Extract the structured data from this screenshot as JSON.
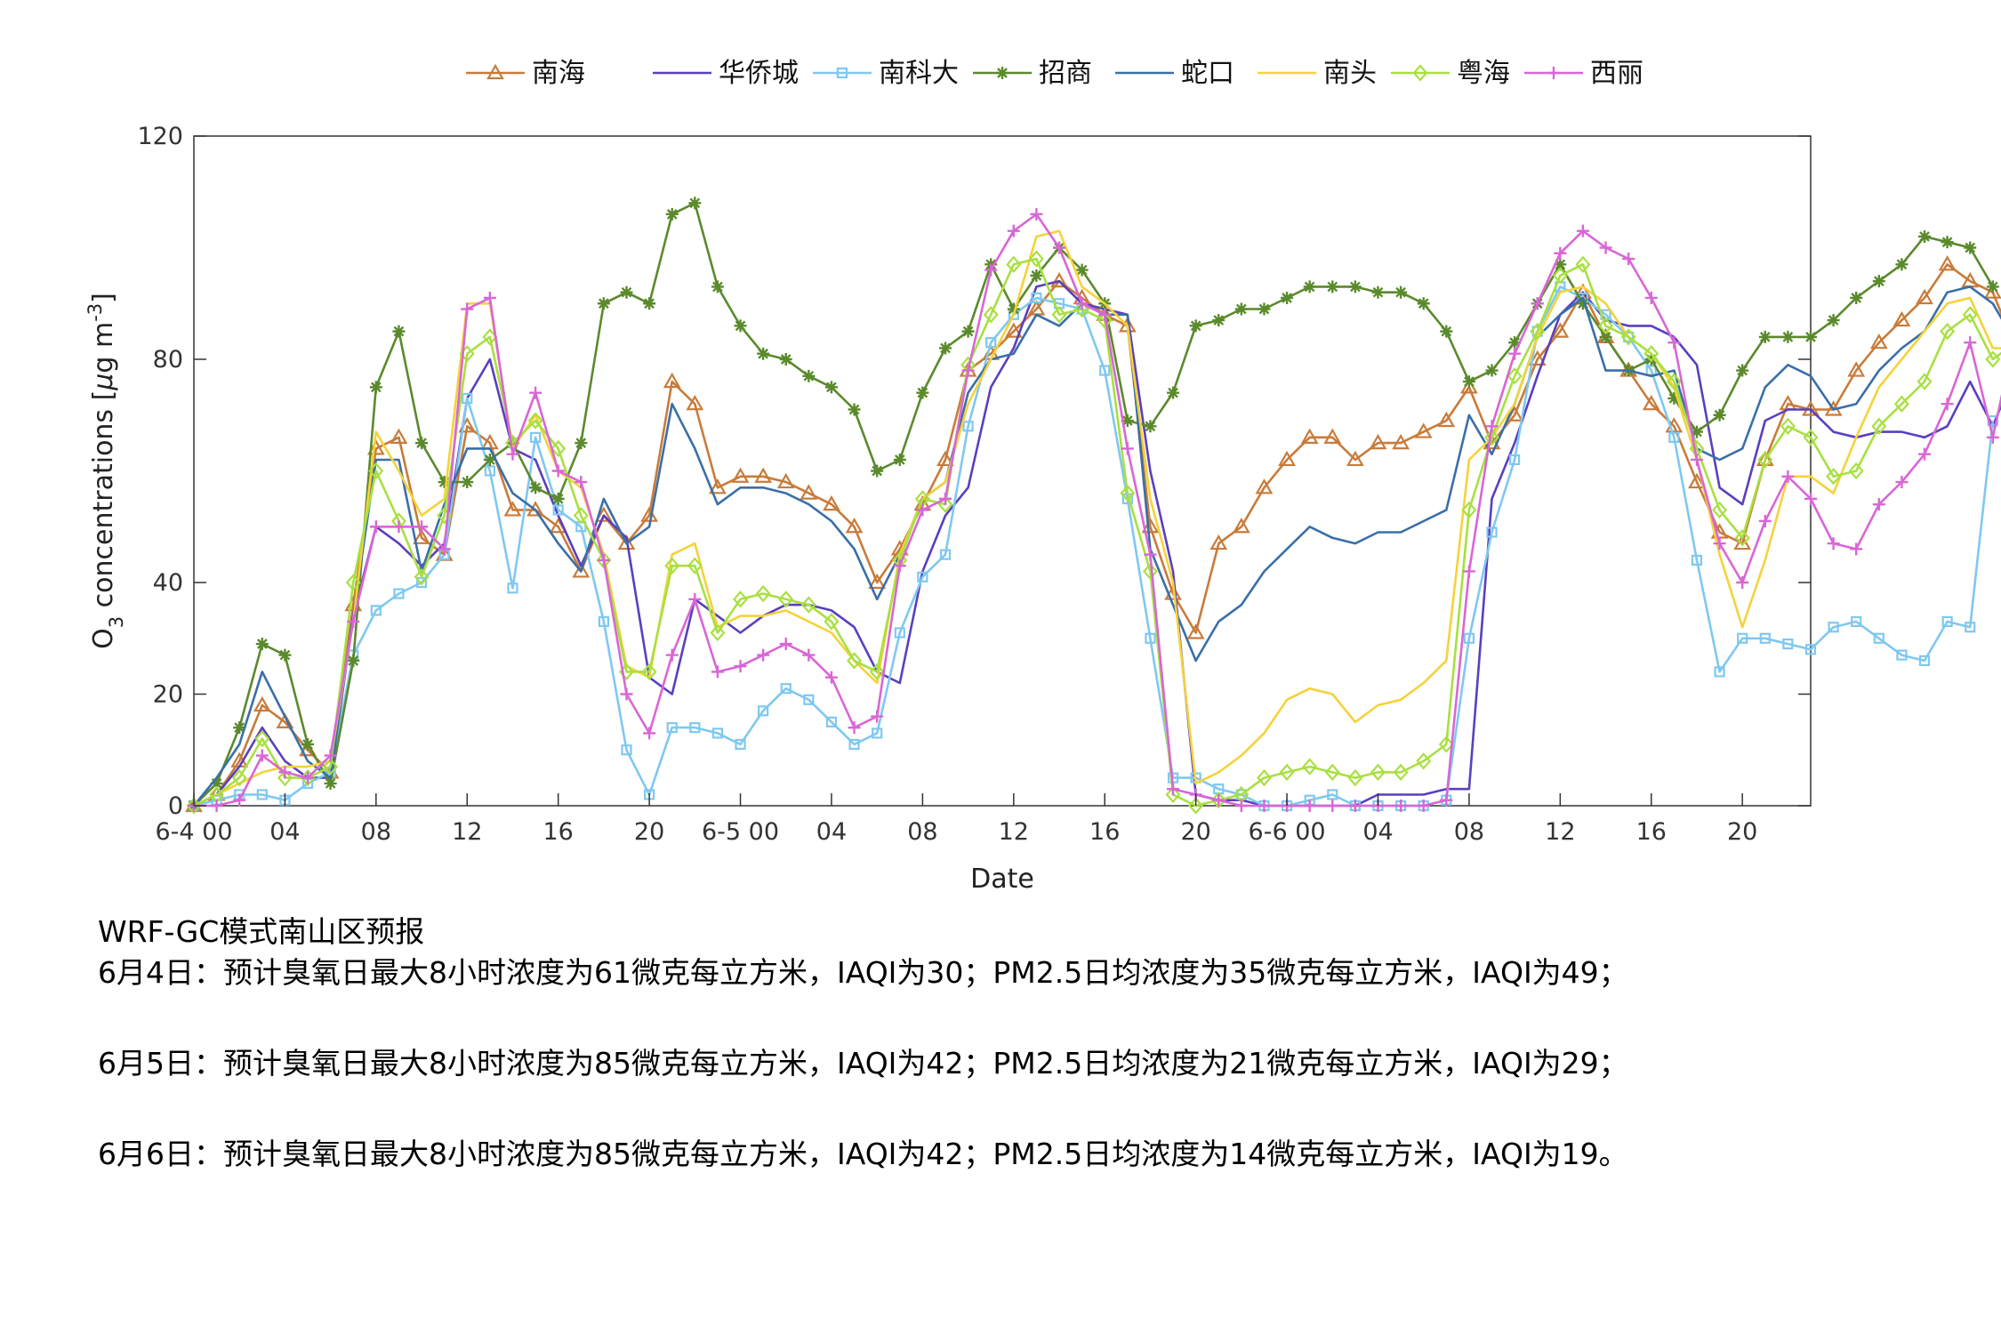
{
  "chart_data": {
    "type": "line",
    "xlabel": "Date",
    "ylabel": "O3 concentrations [μg m-3]",
    "ylabel_parts": {
      "main": "O",
      "sub": "3",
      "rest": " concentrations [",
      "mu": "μ",
      "unit": "g m",
      "sup": "-3",
      "close": "]"
    },
    "ylim": [
      0,
      120
    ],
    "yticks": [
      0,
      20,
      40,
      80,
      120
    ],
    "x_hours_range": [
      0,
      71
    ],
    "xticks": [
      {
        "hour": 0,
        "label": "6-4 00"
      },
      {
        "hour": 4,
        "label": "04"
      },
      {
        "hour": 8,
        "label": "08"
      },
      {
        "hour": 12,
        "label": "12"
      },
      {
        "hour": 16,
        "label": "16"
      },
      {
        "hour": 20,
        "label": "20"
      },
      {
        "hour": 24,
        "label": "6-5 00"
      },
      {
        "hour": 28,
        "label": "04"
      },
      {
        "hour": 32,
        "label": "08"
      },
      {
        "hour": 36,
        "label": "12"
      },
      {
        "hour": 40,
        "label": "16"
      },
      {
        "hour": 44,
        "label": "20"
      },
      {
        "hour": 48,
        "label": "6-6 00"
      },
      {
        "hour": 52,
        "label": "04"
      },
      {
        "hour": 56,
        "label": "08"
      },
      {
        "hour": 60,
        "label": "12"
      },
      {
        "hour": 64,
        "label": "16"
      },
      {
        "hour": 68,
        "label": "20"
      }
    ],
    "grid": false,
    "legend_position": "top",
    "series": [
      {
        "name": "南海",
        "color": "#c97b3a",
        "marker": "triangle",
        "values": [
          0,
          2,
          8,
          18,
          15,
          10,
          6,
          36,
          64,
          66,
          48,
          45,
          68,
          65,
          53,
          53,
          50,
          42,
          52,
          47,
          52,
          76,
          72,
          57,
          59,
          59,
          58,
          56,
          54,
          50,
          40,
          46,
          54,
          62,
          78,
          81,
          85,
          89,
          94,
          91,
          88,
          86,
          50,
          38,
          31,
          47,
          50,
          57,
          62,
          66,
          66,
          62,
          65,
          65,
          67,
          69,
          75,
          65,
          70,
          80,
          85,
          92,
          84,
          78,
          72,
          68,
          58,
          49,
          47,
          62,
          72,
          71,
          71,
          78,
          83,
          87,
          91,
          97,
          94,
          92,
          82
        ]
      },
      {
        "name": "华侨城",
        "color": "#5a3fbf",
        "marker": "none",
        "values": [
          0,
          2,
          7,
          14,
          8,
          5,
          5,
          34,
          50,
          47,
          43,
          47,
          73,
          80,
          64,
          62,
          52,
          43,
          52,
          48,
          23,
          20,
          37,
          34,
          31,
          34,
          36,
          36,
          35,
          32,
          24,
          22,
          42,
          52,
          57,
          75,
          82,
          93,
          94,
          90,
          89,
          88,
          60,
          42,
          2,
          1,
          1,
          0,
          0,
          0,
          0,
          0,
          2,
          2,
          2,
          3,
          3,
          55,
          65,
          77,
          88,
          92,
          87,
          86,
          86,
          84,
          79,
          57,
          54,
          69,
          71,
          71,
          67,
          66,
          67,
          67,
          66,
          68,
          76,
          68,
          78
        ]
      },
      {
        "name": "南科大",
        "color": "#7fc8f0",
        "marker": "square",
        "values": [
          0,
          1,
          2,
          2,
          1,
          4,
          6,
          27,
          35,
          38,
          40,
          45,
          73,
          60,
          39,
          66,
          53,
          50,
          33,
          10,
          2,
          14,
          14,
          13,
          11,
          17,
          21,
          19,
          15,
          11,
          13,
          31,
          41,
          45,
          68,
          83,
          88,
          91,
          90,
          89,
          78,
          55,
          30,
          5,
          5,
          3,
          2,
          0,
          0,
          1,
          2,
          0,
          0,
          0,
          0,
          1,
          30,
          49,
          62,
          85,
          93,
          91,
          88,
          84,
          78,
          66,
          44,
          24,
          30,
          30,
          29,
          28,
          32,
          33,
          30,
          27,
          26,
          33,
          32,
          69
        ]
      },
      {
        "name": "招商",
        "color": "#5b8a2c",
        "marker": "star",
        "values": [
          0,
          4,
          14,
          29,
          27,
          11,
          4,
          26,
          75,
          85,
          65,
          58,
          58,
          62,
          65,
          57,
          55,
          65,
          90,
          92,
          90,
          106,
          108,
          93,
          86,
          81,
          80,
          77,
          75,
          71,
          60,
          62,
          74,
          82,
          85,
          97,
          89,
          95,
          100,
          96,
          90,
          69,
          68,
          74,
          86,
          87,
          89,
          89,
          91,
          93,
          93,
          93,
          92,
          92,
          90,
          85,
          76,
          78,
          83,
          90,
          97,
          90,
          84,
          78,
          80,
          73,
          67,
          70,
          78,
          84,
          84,
          84,
          87,
          91,
          94,
          97,
          102,
          101,
          100,
          93
        ]
      },
      {
        "name": "蛇口",
        "color": "#3a6fa8",
        "marker": "none",
        "values": [
          0,
          5,
          11,
          24,
          16,
          8,
          5,
          34,
          62,
          62,
          42,
          54,
          64,
          64,
          56,
          53,
          47,
          42,
          55,
          47,
          50,
          72,
          64,
          54,
          57,
          57,
          56,
          54,
          51,
          46,
          37,
          45,
          55,
          58,
          74,
          80,
          81,
          88,
          86,
          90,
          88,
          88,
          46,
          36,
          26,
          33,
          36,
          42,
          46,
          50,
          48,
          47,
          49,
          49,
          51,
          53,
          70,
          63,
          72,
          84,
          88,
          91,
          78,
          78,
          77,
          78,
          64,
          62,
          64,
          75,
          79,
          77,
          71,
          72,
          78,
          82,
          85,
          92,
          93,
          90,
          83
        ]
      },
      {
        "name": "南头",
        "color": "#f6d23a",
        "marker": "none",
        "values": [
          0,
          2,
          4,
          6,
          7,
          7,
          8,
          33,
          67,
          60,
          52,
          55,
          90,
          90,
          64,
          70,
          60,
          57,
          45,
          25,
          23,
          45,
          47,
          32,
          34,
          34,
          35,
          33,
          31,
          26,
          22,
          45,
          55,
          58,
          72,
          80,
          88,
          102,
          103,
          93,
          90,
          86,
          55,
          40,
          4,
          6,
          9,
          13,
          19,
          21,
          20,
          15,
          18,
          19,
          22,
          26,
          62,
          66,
          72,
          84,
          92,
          93,
          90,
          84,
          81,
          75,
          62,
          45,
          32,
          44,
          59,
          59,
          56,
          66,
          75,
          80,
          85,
          90,
          91,
          82,
          82
        ]
      },
      {
        "name": "粤海",
        "color": "#a8e040",
        "marker": "diamond",
        "values": [
          0,
          2,
          5,
          12,
          5,
          5,
          7,
          40,
          60,
          51,
          41,
          52,
          81,
          84,
          65,
          69,
          64,
          52,
          44,
          24,
          24,
          43,
          43,
          31,
          37,
          38,
          37,
          36,
          33,
          26,
          24,
          44,
          55,
          54,
          79,
          88,
          97,
          98,
          88,
          89,
          87,
          56,
          42,
          2,
          0,
          1,
          2,
          5,
          6,
          7,
          6,
          5,
          6,
          6,
          8,
          11,
          53,
          66,
          77,
          85,
          95,
          97,
          86,
          84,
          81,
          76,
          64,
          53,
          48,
          62,
          68,
          66,
          59,
          60,
          68,
          72,
          76,
          85,
          88,
          80,
          83
        ]
      },
      {
        "name": "西丽",
        "color": "#d966d6",
        "marker": "plus",
        "values": [
          0,
          0,
          1,
          9,
          6,
          5,
          9,
          33,
          50,
          50,
          50,
          46,
          89,
          91,
          63,
          74,
          60,
          58,
          44,
          20,
          13,
          27,
          37,
          24,
          25,
          27,
          29,
          27,
          23,
          14,
          16,
          43,
          53,
          55,
          78,
          96,
          103,
          106,
          100,
          90,
          88,
          64,
          45,
          3,
          2,
          1,
          0,
          0,
          0,
          0,
          0,
          0,
          0,
          0,
          0,
          1,
          42,
          68,
          81,
          90,
          99,
          103,
          100,
          98,
          91,
          83,
          62,
          47,
          40,
          51,
          59,
          55,
          47,
          46,
          54,
          58,
          63,
          72,
          83,
          66,
          85
        ]
      }
    ]
  },
  "forecast": {
    "title": "WRF-GC模式南山区预报",
    "day1": "6月4日：预计臭氧日最大8小时浓度为61微克每立方米，IAQI为30；PM2.5日均浓度为35微克每立方米，IAQI为49；",
    "day2": "6月5日：预计臭氧日最大8小时浓度为85微克每立方米，IAQI为42；PM2.5日均浓度为21微克每立方米，IAQI为29；",
    "day3": "6月6日：预计臭氧日最大8小时浓度为85微克每立方米，IAQI为42；PM2.5日均浓度为14微克每立方米，IAQI为19。"
  }
}
